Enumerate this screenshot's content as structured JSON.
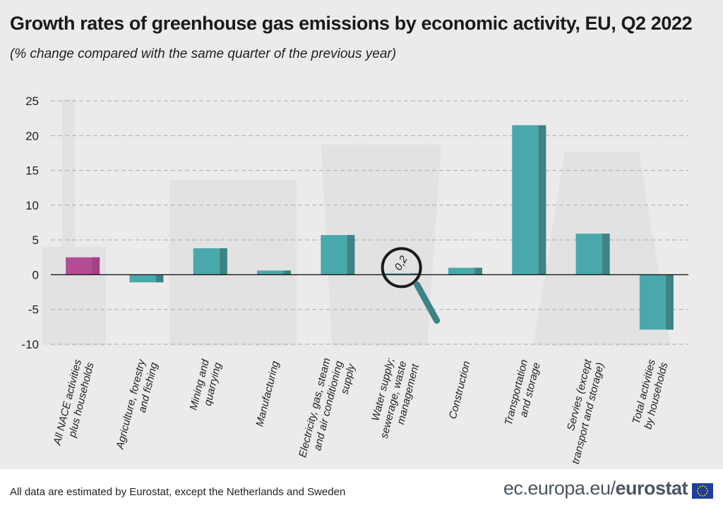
{
  "title": "Growth rates of greenhouse gas emissions by economic activity, EU, Q2 2022",
  "subtitle": "(% change compared with the same quarter of the previous year)",
  "footer": {
    "note": "All data are estimated by Eurostat, except the Netherlands and Sweden",
    "brand_light": "ec.europa.eu/",
    "brand_bold": "eurostat"
  },
  "colors": {
    "bar": "#4aa8ac",
    "bar_dark": "#3d8284",
    "highlight": "#b64b96",
    "highlight_dark": "#a24287",
    "grid": "#aaaaaa"
  },
  "chart_data": {
    "type": "bar",
    "title": "Growth rates of greenhouse gas emissions by economic activity, EU, Q2 2022",
    "subtitle": "(% change compared with the same quarter of the previous year)",
    "categories": [
      [
        "All NACE activities",
        "plus households"
      ],
      [
        "Agriculture, forestry",
        "and fishing"
      ],
      [
        "Mining and",
        "quarrying"
      ],
      [
        "Manufacturing"
      ],
      [
        "Electricity, gas, steam",
        "and air conditioning",
        "supply"
      ],
      [
        "Water supply;",
        "sewerage, waste",
        "management"
      ],
      [
        "Construction"
      ],
      [
        "Transportation",
        "and storage"
      ],
      [
        "Servies (except",
        "transport and storage)"
      ],
      [
        "Total activities",
        "by households"
      ]
    ],
    "values": [
      2.5,
      -1.1,
      3.8,
      0.6,
      5.7,
      0.2,
      1.0,
      21.5,
      5.9,
      -7.9
    ],
    "highlight_index": 0,
    "annotation": {
      "category_index": 5,
      "text": "0,2"
    },
    "yticks": [
      25,
      20,
      15,
      10,
      5,
      0,
      -5,
      -10
    ],
    "ylim": [
      -10,
      25
    ],
    "grid": true
  }
}
